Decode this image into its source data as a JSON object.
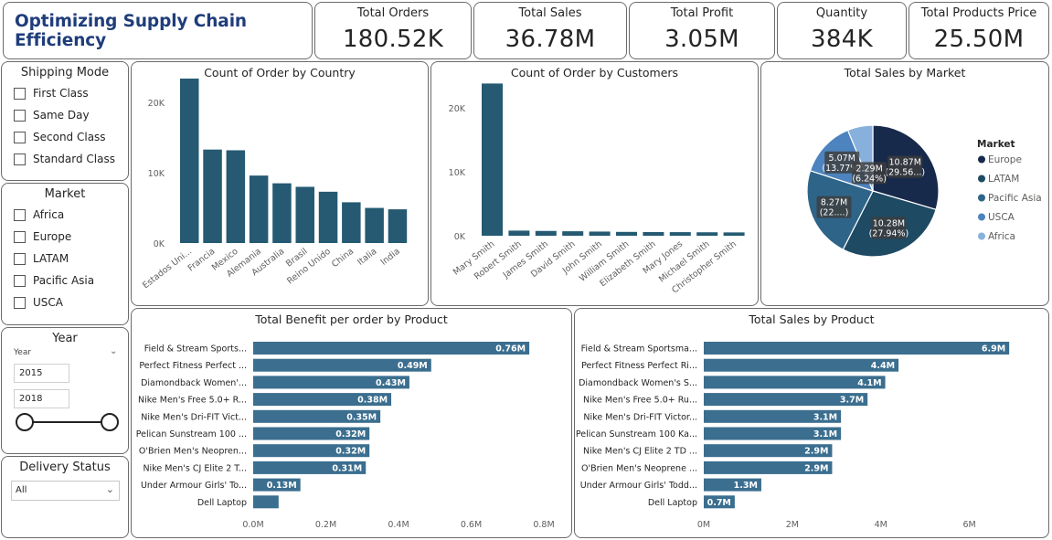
{
  "header": {
    "title": "Optimizing Supply Chain Efficiency"
  },
  "kpis": [
    {
      "label": "Total Orders",
      "value": "180.52K"
    },
    {
      "label": "Total Sales",
      "value": "36.78M"
    },
    {
      "label": "Total Profit",
      "value": "3.05M"
    },
    {
      "label": "Quantity",
      "value": "384K"
    },
    {
      "label": "Total Products Price",
      "value": "25.50M"
    }
  ],
  "slicers": {
    "shipping_mode": {
      "title": "Shipping Mode",
      "options": [
        "First Class",
        "Same Day",
        "Second Class",
        "Standard Class"
      ]
    },
    "market": {
      "title": "Market",
      "options": [
        "Africa",
        "Europe",
        "LATAM",
        "Pacific Asia",
        "USCA"
      ]
    },
    "year": {
      "title": "Year",
      "field_label": "Year",
      "from": "2015",
      "to": "2018"
    },
    "delivery_status": {
      "title": "Delivery Status",
      "selected": "All"
    }
  },
  "colors": {
    "bar": "#255a72",
    "hbar": "#3b6e8f",
    "axis_text": "#605e5c"
  },
  "chart_data": [
    {
      "type": "bar",
      "title": "Count of Order by Country",
      "categories": [
        "Estados Uni...",
        "Francia",
        "Mexico",
        "Alemania",
        "Australia",
        "Brasil",
        "Reino Unido",
        "China",
        "Italia",
        "India"
      ],
      "values": [
        24800,
        13300,
        13200,
        9600,
        8500,
        8000,
        7300,
        5800,
        5000,
        4800
      ],
      "ylim": [
        0,
        26000
      ],
      "yticks": [
        0,
        10000,
        20000
      ],
      "ytick_labels": [
        "0K",
        "10K",
        "20K"
      ]
    },
    {
      "type": "bar",
      "title": "Count of Order by Customers",
      "categories": [
        "Mary Smith",
        "Robert Smith",
        "James Smith",
        "David Smith",
        "John Smith",
        "William Smith",
        "Elizabeth Smith",
        "Mary Jones",
        "Michael Smith",
        "Christopher Smith"
      ],
      "values": [
        23800,
        800,
        750,
        700,
        650,
        600,
        580,
        560,
        540,
        520
      ],
      "ylim": [
        0,
        26000
      ],
      "yticks": [
        0,
        10000,
        20000
      ],
      "ytick_labels": [
        "0K",
        "10K",
        "20K"
      ]
    },
    {
      "type": "pie",
      "title": "Total Sales by Market",
      "legend_title": "Market",
      "slices": [
        {
          "name": "Europe",
          "value": 10.87,
          "label": "10.87M",
          "pct": "(29.56...)",
          "color": "#182a4b"
        },
        {
          "name": "LATAM",
          "value": 10.28,
          "label": "10.28M",
          "pct": "(27.94%)",
          "color": "#1e4a64"
        },
        {
          "name": "Pacific Asia",
          "value": 8.27,
          "label": "8.27M",
          "pct": "(22....)",
          "color": "#2f6489"
        },
        {
          "name": "USCA",
          "value": 5.07,
          "label": "5.07M",
          "pct": "(13.77%)",
          "color": "#4d83be"
        },
        {
          "name": "Africa",
          "value": 2.29,
          "label": "2.29M",
          "pct": "(6.24%)",
          "color": "#88b0dc"
        }
      ]
    },
    {
      "type": "bar",
      "orientation": "horizontal",
      "title": "Total Benefit per order by Product",
      "categories": [
        "Field & Stream Sports...",
        "Perfect Fitness Perfect ...",
        "Diamondback Women'...",
        "Nike Men's Free 5.0+ R...",
        "Nike Men's Dri-FIT Vict...",
        "Pelican Sunstream 100 ...",
        "O'Brien Men's Neopren...",
        "Nike Men's CJ Elite 2 T...",
        "Under Armour Girls' To...",
        "Dell Laptop"
      ],
      "values": [
        0.76,
        0.49,
        0.43,
        0.38,
        0.35,
        0.32,
        0.32,
        0.31,
        0.13,
        0.07
      ],
      "value_labels": [
        "0.76M",
        "0.49M",
        "0.43M",
        "0.38M",
        "0.35M",
        "0.32M",
        "0.32M",
        "0.31M",
        "0.13M",
        ""
      ],
      "xlim": [
        0,
        0.8
      ],
      "xticks": [
        0,
        0.2,
        0.4,
        0.6,
        0.8
      ],
      "xtick_labels": [
        "0.0M",
        "0.2M",
        "0.4M",
        "0.6M",
        "0.8M"
      ]
    },
    {
      "type": "bar",
      "orientation": "horizontal",
      "title": "Total Sales by Product",
      "categories": [
        "Field & Stream Sportsma...",
        "Perfect Fitness Perfect Ri...",
        "Diamondback Women's S...",
        "Nike Men's Free 5.0+ Ru...",
        "Nike Men's Dri-FIT Victor...",
        "Pelican Sunstream 100 Ka...",
        "Nike Men's CJ Elite 2 TD ...",
        "O'Brien Men's Neoprene ...",
        "Under Armour Girls' Todd...",
        "Dell Laptop"
      ],
      "values": [
        6.9,
        4.4,
        4.1,
        3.7,
        3.1,
        3.1,
        2.9,
        2.9,
        1.3,
        0.7
      ],
      "value_labels": [
        "6.9M",
        "4.4M",
        "4.1M",
        "3.7M",
        "3.1M",
        "3.1M",
        "2.9M",
        "2.9M",
        "1.3M",
        "0.7M"
      ],
      "xlim": [
        0,
        7
      ],
      "xticks": [
        0,
        2,
        4,
        6
      ],
      "xtick_labels": [
        "0M",
        "2M",
        "4M",
        "6M"
      ]
    }
  ]
}
